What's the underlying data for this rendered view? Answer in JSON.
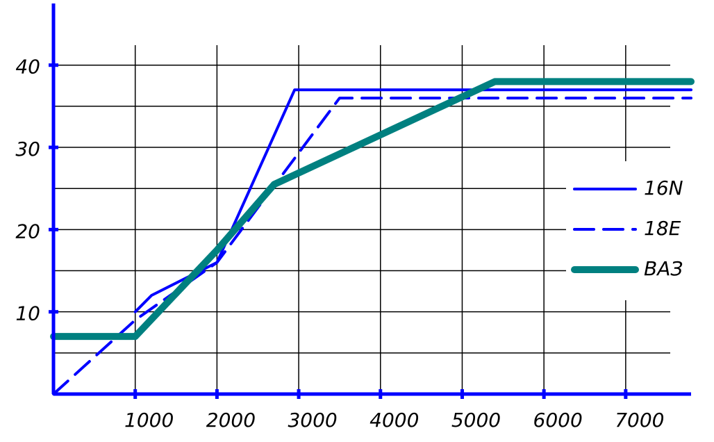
{
  "chart_data": {
    "type": "line",
    "series": [
      {
        "name": "16N",
        "color": "#0000ff",
        "dash": "solid",
        "width": 4,
        "x": [
          1000,
          1200,
          2000,
          2950,
          7800
        ],
        "values": [
          10,
          12,
          16,
          37,
          37
        ]
      },
      {
        "name": "18E",
        "color": "#0000ff",
        "dash": "dashed",
        "width": 4,
        "x": [
          0,
          1000,
          2000,
          3500,
          7800
        ],
        "values": [
          0,
          9,
          16,
          36,
          36
        ]
      },
      {
        "name": "ВАЗ",
        "color": "#008080",
        "dash": "solid",
        "width": 10,
        "x": [
          0,
          1000,
          2000,
          2700,
          5400,
          7800
        ],
        "values": [
          7,
          7,
          17.5,
          25.5,
          38,
          38
        ]
      }
    ],
    "xlim": [
      0,
      7800
    ],
    "ylim": [
      0,
      47.5
    ],
    "xticks": [
      1000,
      2000,
      3000,
      4000,
      5000,
      6000,
      7000
    ],
    "yticks": [
      10,
      20,
      30,
      40
    ],
    "ygrid": [
      5,
      10,
      15,
      20,
      25,
      30,
      35,
      40
    ],
    "grid": true,
    "legend": "right"
  }
}
